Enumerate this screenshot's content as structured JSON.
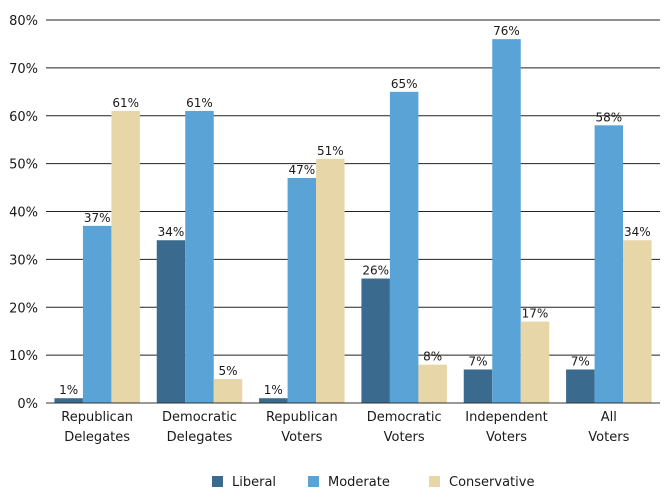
{
  "chart_data": {
    "type": "bar",
    "categories": [
      [
        "Republican",
        "Delegates"
      ],
      [
        "Democratic",
        "Delegates"
      ],
      [
        "Republican",
        "Voters"
      ],
      [
        "Democratic",
        "Voters"
      ],
      [
        "Independent",
        "Voters"
      ],
      [
        "All",
        "Voters"
      ]
    ],
    "series": [
      {
        "name": "Liberal",
        "color": "#3a6b8e",
        "values": [
          1,
          34,
          1,
          26,
          7,
          7
        ]
      },
      {
        "name": "Moderate",
        "color": "#5aa3d6",
        "values": [
          37,
          61,
          47,
          65,
          76,
          58
        ]
      },
      {
        "name": "Conservative",
        "color": "#e6d6a8",
        "values": [
          61,
          5,
          51,
          8,
          17,
          34
        ]
      }
    ],
    "ylim": [
      0,
      80
    ],
    "yticks": [
      0,
      10,
      20,
      30,
      40,
      50,
      60,
      70,
      80
    ],
    "value_suffix": "%",
    "grid": true,
    "legend_position": "bottom-center"
  }
}
